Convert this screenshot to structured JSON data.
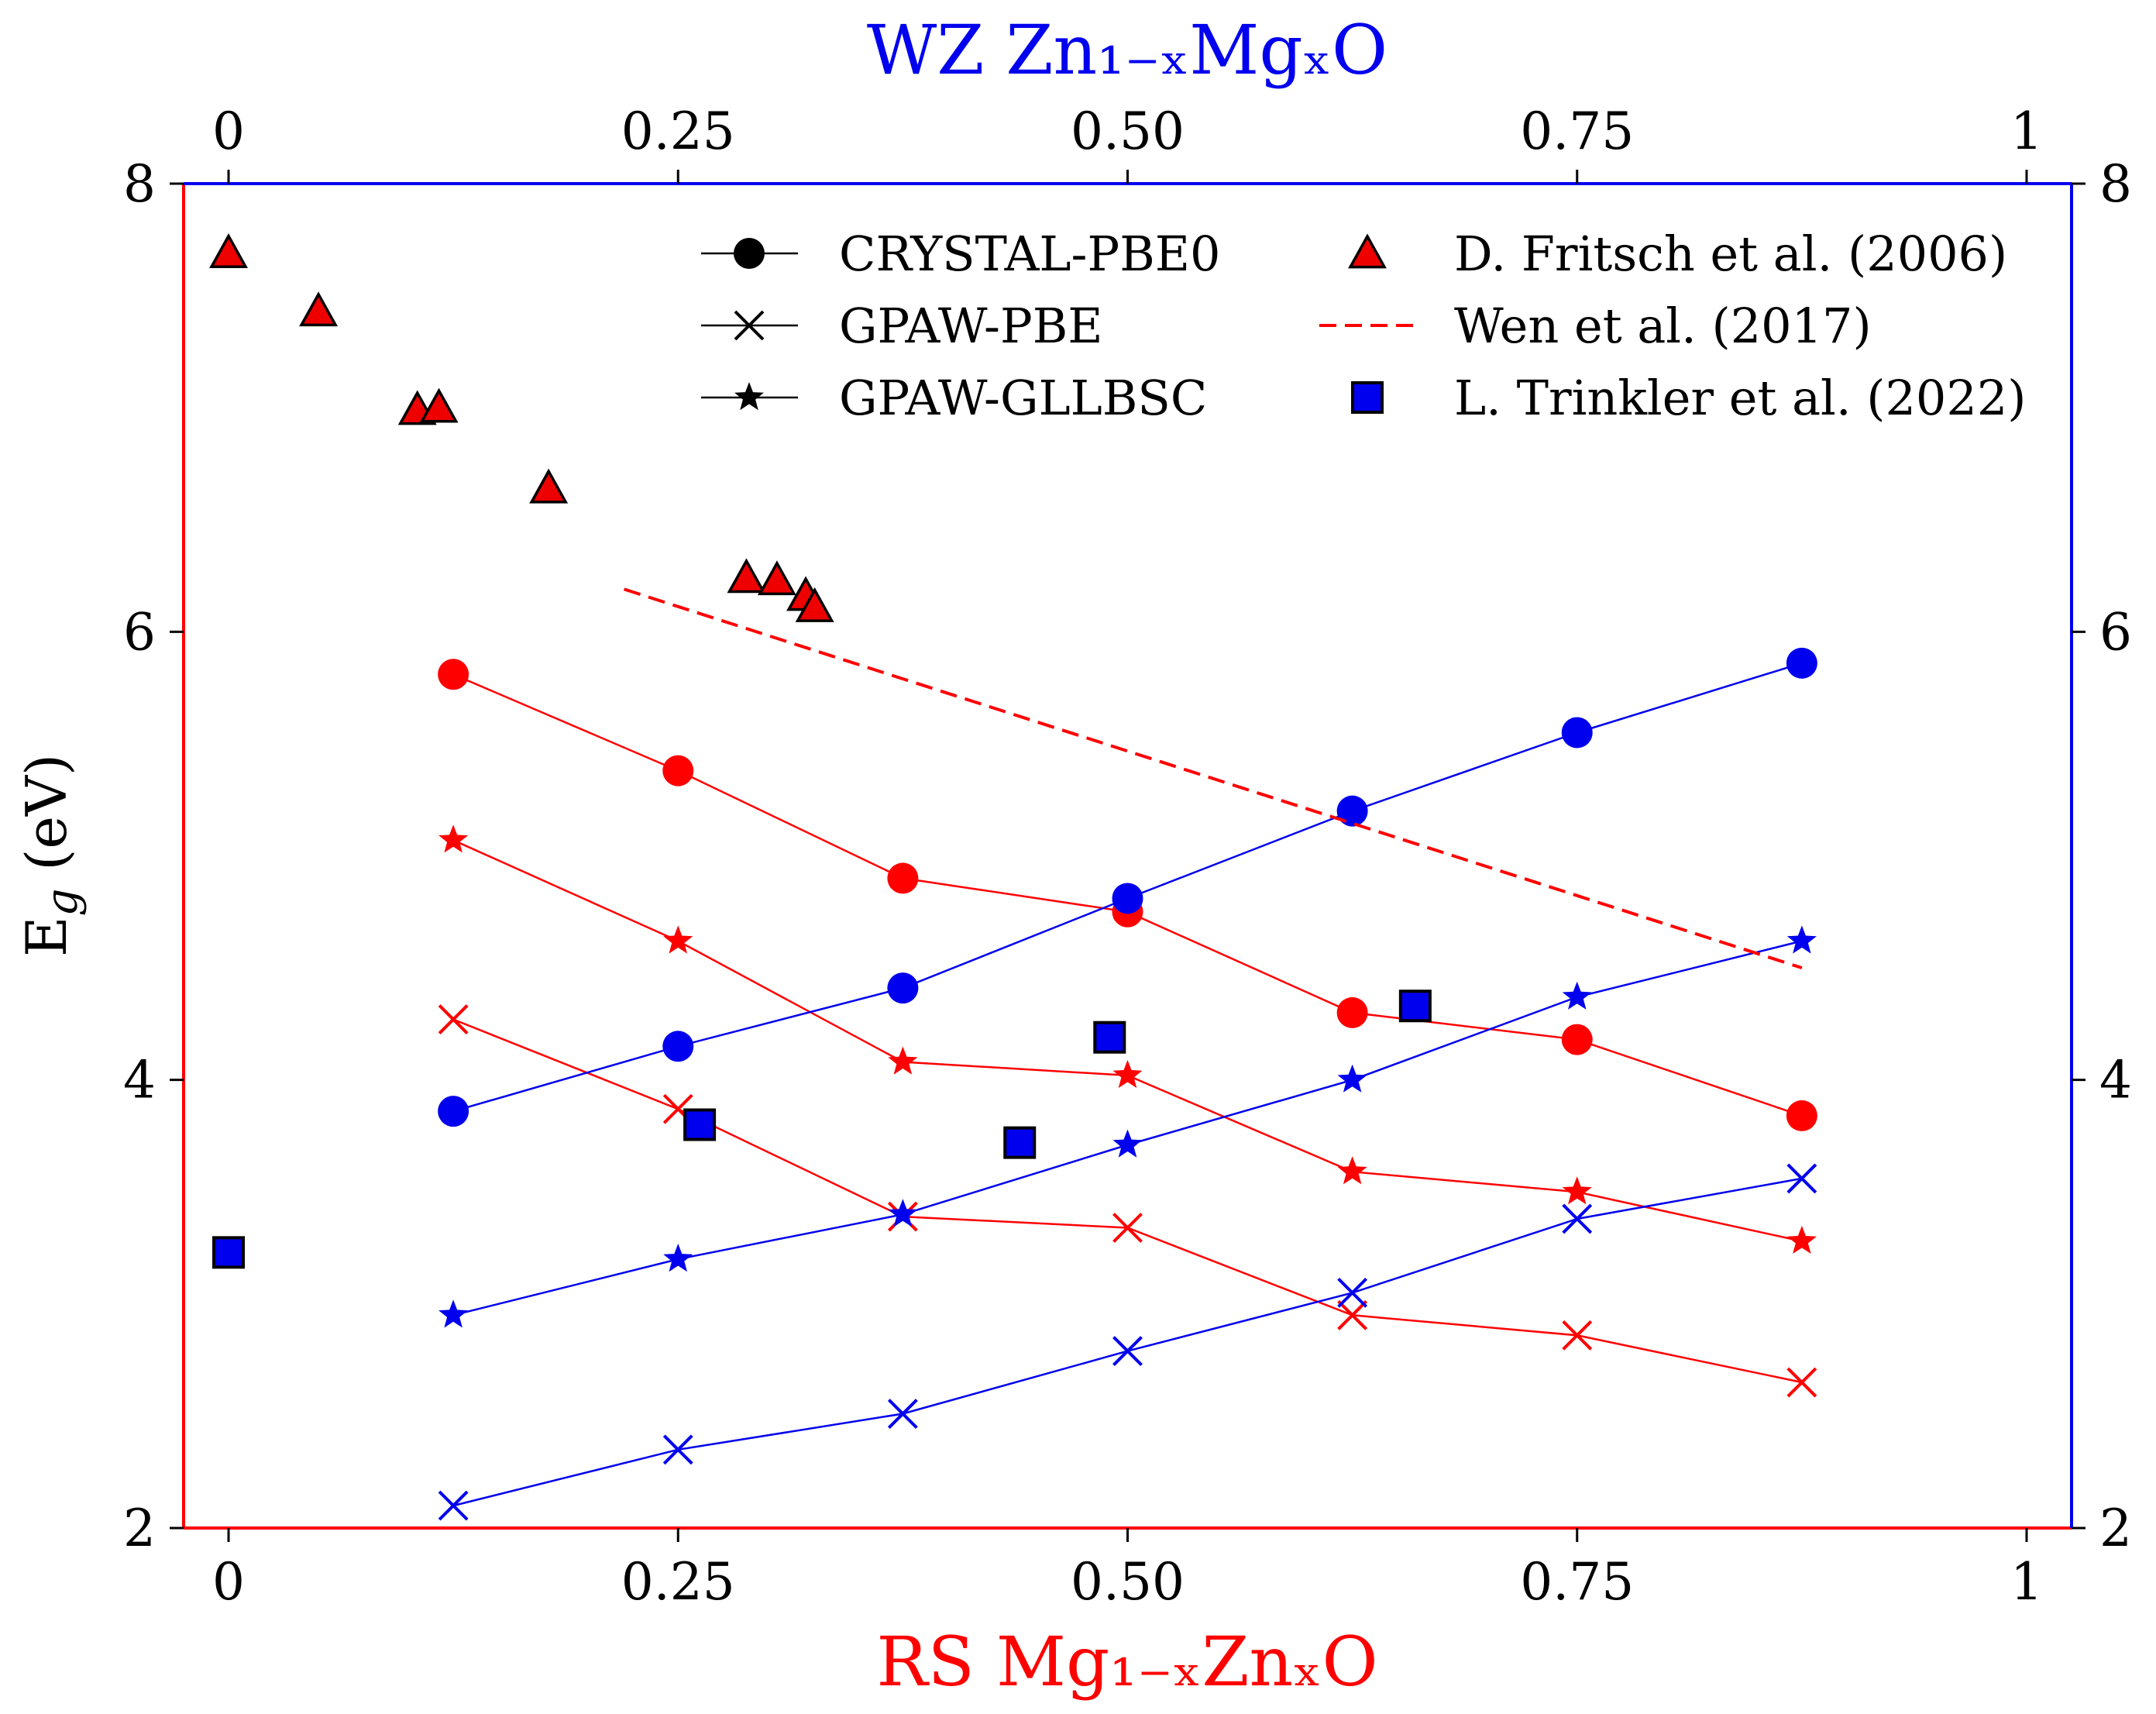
{
  "chart_data": {
    "type": "line",
    "title": "",
    "bottom_axis": {
      "label": "RS Mg₁₋ₓZnₓO",
      "range": [
        -0.025,
        1.025
      ],
      "ticks": [
        {
          "value": 0,
          "label": "0"
        },
        {
          "value": 0.25,
          "label": "0.25"
        },
        {
          "value": 0.5,
          "label": "0.50"
        },
        {
          "value": 0.75,
          "label": "0.75"
        },
        {
          "value": 1,
          "label": "1"
        }
      ],
      "color": "#ff0000"
    },
    "top_axis": {
      "label": "WZ Zn₁₋ₓMgₓO",
      "range": [
        -0.025,
        1.025
      ],
      "ticks": [
        {
          "value": 0,
          "label": "0"
        },
        {
          "value": 0.25,
          "label": "0.25"
        },
        {
          "value": 0.5,
          "label": "0.50"
        },
        {
          "value": 0.75,
          "label": "0.75"
        },
        {
          "value": 1,
          "label": "1"
        }
      ],
      "color": "#0000ee"
    },
    "left_axis": {
      "label_main": "E",
      "label_sub": "g",
      "label_rest": " (eV)",
      "range": [
        2,
        8
      ],
      "ticks": [
        {
          "value": 2,
          "label": "2"
        },
        {
          "value": 4,
          "label": "4"
        },
        {
          "value": 6,
          "label": "6"
        },
        {
          "value": 8,
          "label": "8"
        }
      ]
    },
    "right_axis": {
      "range": [
        2,
        8
      ],
      "ticks": [
        {
          "value": 2,
          "label": "2"
        },
        {
          "value": 4,
          "label": "4"
        },
        {
          "value": 6,
          "label": "6"
        },
        {
          "value": 8,
          "label": "8"
        }
      ]
    },
    "series": [
      {
        "name": "RS CRYSTAL-PBE0",
        "color": "#ff0000",
        "marker": "circle",
        "line": true,
        "x": [
          0.125,
          0.25,
          0.375,
          0.5,
          0.625,
          0.75,
          0.875
        ],
        "y": [
          5.81,
          5.38,
          4.9,
          4.75,
          4.3,
          4.18,
          3.84
        ]
      },
      {
        "name": "RS GPAW-GLLBSC",
        "color": "#ff0000",
        "marker": "star",
        "line": true,
        "x": [
          0.125,
          0.25,
          0.375,
          0.5,
          0.625,
          0.75,
          0.875
        ],
        "y": [
          5.07,
          4.62,
          4.08,
          4.02,
          3.59,
          3.5,
          3.28
        ]
      },
      {
        "name": "RS GPAW-PBE",
        "color": "#ff0000",
        "marker": "x",
        "line": true,
        "x": [
          0.125,
          0.25,
          0.375,
          0.5,
          0.625,
          0.75,
          0.875
        ],
        "y": [
          4.27,
          3.87,
          3.39,
          3.34,
          2.95,
          2.86,
          2.65
        ]
      },
      {
        "name": "WZ CRYSTAL-PBE0",
        "color": "#0000ee",
        "marker": "circle",
        "line": true,
        "x": [
          0.125,
          0.25,
          0.375,
          0.5,
          0.625,
          0.75,
          0.875
        ],
        "y": [
          3.86,
          4.15,
          4.41,
          4.81,
          5.2,
          5.55,
          5.86
        ]
      },
      {
        "name": "WZ GPAW-GLLBSC",
        "color": "#0000ee",
        "marker": "star",
        "line": true,
        "x": [
          0.125,
          0.25,
          0.375,
          0.5,
          0.625,
          0.75,
          0.875
        ],
        "y": [
          2.95,
          3.2,
          3.4,
          3.71,
          4.0,
          4.37,
          4.62
        ]
      },
      {
        "name": "WZ GPAW-PBE",
        "color": "#0000ee",
        "marker": "x",
        "line": true,
        "x": [
          0.125,
          0.25,
          0.375,
          0.5,
          0.625,
          0.75,
          0.875
        ],
        "y": [
          2.1,
          2.35,
          2.51,
          2.79,
          3.05,
          3.38,
          3.56
        ]
      },
      {
        "name": "D. Fritsch et al. (2006)",
        "color": "#ee0000",
        "marker": "triangle",
        "line": false,
        "x": [
          0.0,
          0.05,
          0.105,
          0.117,
          0.178,
          0.288,
          0.305,
          0.321,
          0.326
        ],
        "y": [
          7.69,
          7.43,
          6.99,
          7.0,
          6.64,
          6.24,
          6.23,
          6.16,
          6.11
        ]
      },
      {
        "name": "Wen et al. (2017)",
        "color": "#ff0000",
        "marker": "none",
        "line": true,
        "dashed": true,
        "x": [
          0.22,
          0.875
        ],
        "y": [
          6.19,
          4.5
        ]
      },
      {
        "name": "L. Trinkler et al. (2022)",
        "color": "#0000ee",
        "marker": "square",
        "line": false,
        "x": [
          0.0,
          0.262,
          0.44,
          0.49,
          0.66
        ],
        "y": [
          3.23,
          3.8,
          3.72,
          4.19,
          4.33
        ]
      }
    ],
    "legend": {
      "placement": "top",
      "col1": [
        {
          "label": "CRYSTAL-PBE0",
          "marker": "circle"
        },
        {
          "label": "GPAW-PBE",
          "marker": "x"
        },
        {
          "label": "GPAW-GLLBSC",
          "marker": "star"
        }
      ],
      "col2": [
        {
          "label": "D. Fritsch et al. (2006)",
          "marker": "triangle"
        },
        {
          "label": "Wen et al. (2017)",
          "marker": "dashed"
        },
        {
          "label": "L. Trinkler et al. (2022)",
          "marker": "square"
        }
      ]
    }
  }
}
